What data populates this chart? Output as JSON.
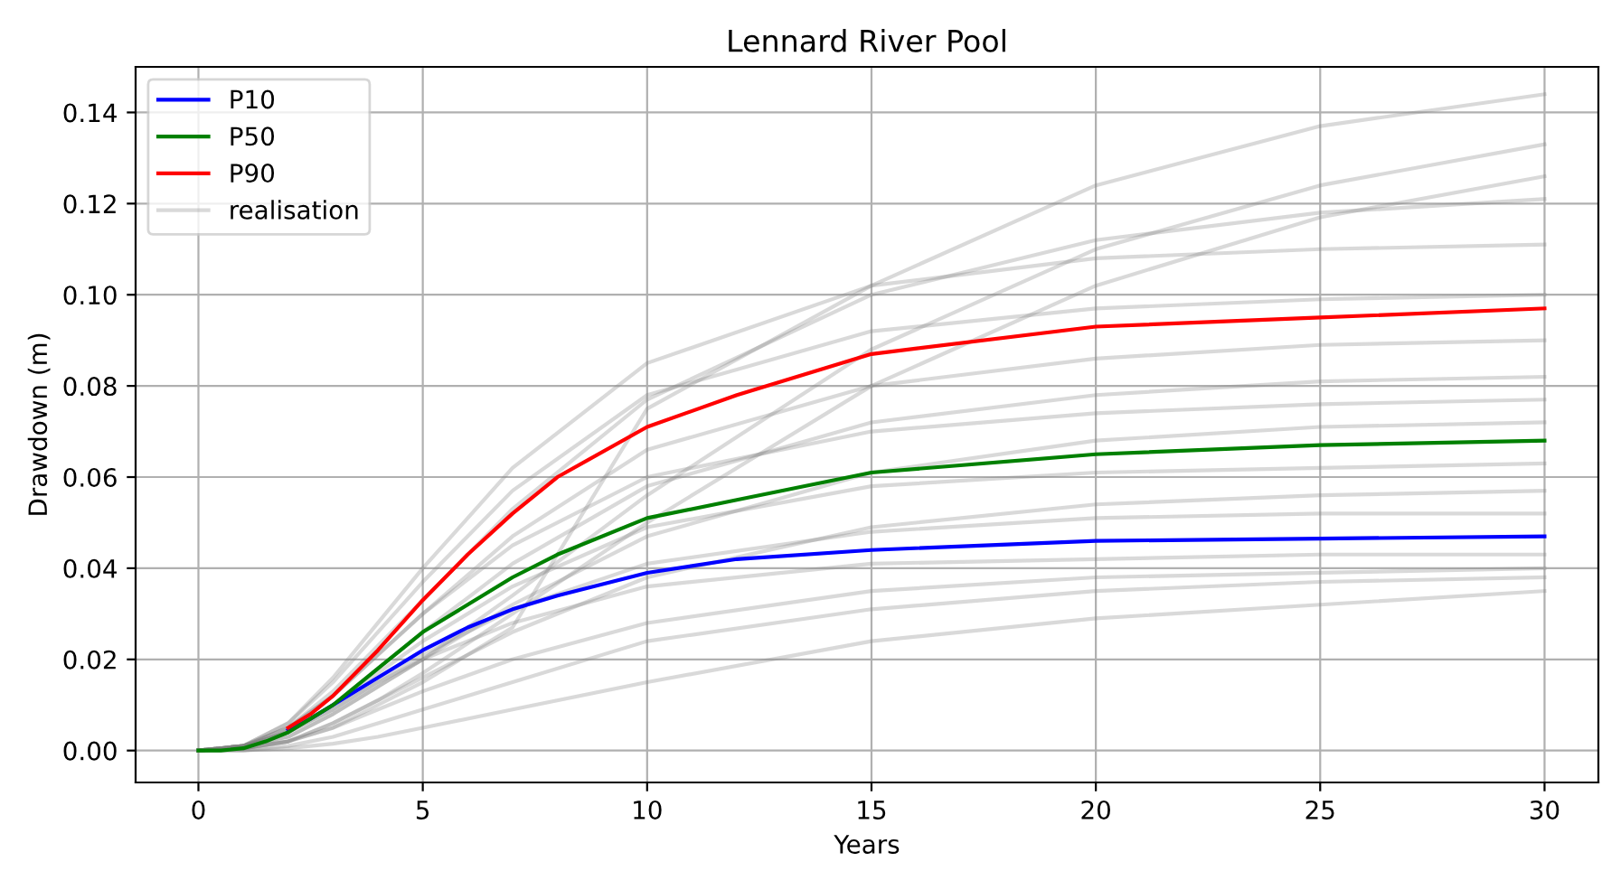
{
  "chart_data": {
    "type": "line",
    "title": "Lennard River Pool",
    "xlabel": "Years",
    "ylabel": "Drawdown (m)",
    "xlim": [
      -1.4,
      31.2
    ],
    "xticks": [
      0,
      5,
      10,
      15,
      20,
      25,
      30
    ],
    "ylim": [
      -0.007,
      0.15
    ],
    "yticks": [
      {
        "value": 0,
        "label": "0.00"
      },
      {
        "value": 0.02,
        "label": "0.02"
      },
      {
        "value": 0.04,
        "label": "0.04"
      },
      {
        "value": 0.06,
        "label": "0.06"
      },
      {
        "value": 0.08,
        "label": "0.08"
      },
      {
        "value": 0.1,
        "label": "0.10"
      },
      {
        "value": 0.12,
        "label": "0.12"
      },
      {
        "value": 0.14,
        "label": "0.14"
      }
    ],
    "grid": true,
    "legend": "top left",
    "line_style": "solid",
    "marker": "none",
    "series": [
      {
        "name": "P10",
        "color": "#0000ff",
        "x": [
          2,
          2.5,
          3,
          4,
          5,
          6,
          7,
          8,
          10,
          12,
          15,
          20,
          25,
          30
        ],
        "values": [
          0.0045,
          0.007,
          0.01,
          0.016,
          0.022,
          0.027,
          0.031,
          0.034,
          0.039,
          0.042,
          0.044,
          0.046,
          0.0465,
          0.047
        ]
      },
      {
        "name": "P50",
        "color": "#008000",
        "x": [
          0,
          0.5,
          1,
          1.5,
          2,
          2.5,
          3,
          4,
          5,
          6,
          7,
          8,
          10,
          12,
          15,
          20,
          25,
          30
        ],
        "values": [
          0,
          0,
          0.0005,
          0.002,
          0.004,
          0.007,
          0.01,
          0.018,
          0.026,
          0.032,
          0.038,
          0.043,
          0.051,
          0.055,
          0.061,
          0.065,
          0.067,
          0.068
        ]
      },
      {
        "name": "P90",
        "color": "#ff0000",
        "x": [
          2,
          2.5,
          3,
          4,
          5,
          6,
          7,
          8,
          10,
          12,
          15,
          20,
          25,
          30
        ],
        "values": [
          0.005,
          0.008,
          0.012,
          0.022,
          0.033,
          0.043,
          0.052,
          0.06,
          0.071,
          0.078,
          0.087,
          0.093,
          0.095,
          0.097
        ]
      },
      {
        "name": "realisation",
        "color": "#808080",
        "x": [
          0,
          1,
          2,
          3,
          4,
          5,
          7,
          10,
          15,
          20,
          25,
          30
        ],
        "values": [
          0,
          0.0005,
          0.002,
          0.005,
          0.01,
          0.015,
          0.027,
          0.075,
          0.102,
          0.124,
          0.137,
          0.144
        ]
      },
      {
        "color": "#808080",
        "x": [
          0,
          1,
          2,
          3,
          4,
          5,
          7,
          10,
          15,
          20,
          25,
          30
        ],
        "values": [
          0,
          0.001,
          0.006,
          0.016,
          0.028,
          0.04,
          0.062,
          0.085,
          0.102,
          0.108,
          0.11,
          0.111
        ]
      },
      {
        "color": "#808080",
        "x": [
          0,
          1,
          2,
          3,
          4,
          5,
          7,
          10,
          15,
          20,
          25,
          30
        ],
        "values": [
          0,
          0.001,
          0.005,
          0.013,
          0.023,
          0.033,
          0.053,
          0.077,
          0.1,
          0.112,
          0.118,
          0.121
        ]
      },
      {
        "color": "#808080",
        "x": [
          0,
          1,
          2,
          3,
          4,
          5,
          7,
          10,
          15,
          20,
          25,
          30
        ],
        "values": [
          0,
          0.001,
          0.006,
          0.015,
          0.026,
          0.037,
          0.057,
          0.078,
          0.092,
          0.097,
          0.099,
          0.1
        ]
      },
      {
        "color": "#808080",
        "x": [
          0,
          1,
          2,
          3,
          4,
          5,
          7,
          10,
          15,
          20,
          25,
          30
        ],
        "values": [
          0,
          0.001,
          0.005,
          0.012,
          0.021,
          0.03,
          0.047,
          0.066,
          0.08,
          0.086,
          0.089,
          0.09
        ]
      },
      {
        "color": "#808080",
        "x": [
          0,
          1,
          2,
          3,
          4,
          5,
          7,
          10,
          15,
          20,
          25,
          30
        ],
        "values": [
          0,
          0.001,
          0.004,
          0.01,
          0.018,
          0.026,
          0.041,
          0.058,
          0.072,
          0.078,
          0.081,
          0.082
        ]
      },
      {
        "color": "#808080",
        "x": [
          0,
          1,
          2,
          3,
          4,
          5,
          7,
          10,
          15,
          20,
          25,
          30
        ],
        "values": [
          0,
          0.001,
          0.005,
          0.012,
          0.021,
          0.03,
          0.045,
          0.06,
          0.07,
          0.074,
          0.076,
          0.077
        ]
      },
      {
        "color": "#808080",
        "x": [
          0,
          1,
          2,
          3,
          4,
          5,
          7,
          10,
          15,
          20,
          25,
          30
        ],
        "values": [
          0,
          0.001,
          0.003,
          0.008,
          0.014,
          0.02,
          0.032,
          0.047,
          0.061,
          0.068,
          0.071,
          0.072
        ]
      },
      {
        "color": "#808080",
        "x": [
          0,
          1,
          2,
          3,
          4,
          5,
          7,
          10,
          15,
          20,
          25,
          30
        ],
        "values": [
          0,
          0.001,
          0.004,
          0.01,
          0.017,
          0.024,
          0.036,
          0.049,
          0.058,
          0.061,
          0.062,
          0.063
        ]
      },
      {
        "color": "#808080",
        "x": [
          0,
          1,
          2,
          3,
          4,
          5,
          7,
          10,
          15,
          20,
          25,
          30
        ],
        "values": [
          0,
          0.0005,
          0.002,
          0.006,
          0.011,
          0.016,
          0.026,
          0.038,
          0.049,
          0.054,
          0.056,
          0.057
        ]
      },
      {
        "color": "#808080",
        "x": [
          0,
          1,
          2,
          3,
          4,
          5,
          7,
          10,
          15,
          20,
          25,
          30
        ],
        "values": [
          0,
          0.001,
          0.004,
          0.009,
          0.015,
          0.021,
          0.031,
          0.041,
          0.048,
          0.051,
          0.052,
          0.052
        ]
      },
      {
        "color": "#808080",
        "x": [
          0,
          1,
          2,
          3,
          4,
          5,
          7,
          10,
          15,
          20,
          25,
          30
        ],
        "values": [
          0,
          0.001,
          0.004,
          0.009,
          0.015,
          0.02,
          0.028,
          0.036,
          0.041,
          0.042,
          0.043,
          0.043
        ]
      },
      {
        "color": "#808080",
        "x": [
          0,
          1,
          2,
          3,
          4,
          5,
          7,
          10,
          15,
          20,
          25,
          30
        ],
        "values": [
          0,
          0.0005,
          0.002,
          0.005,
          0.009,
          0.013,
          0.02,
          0.028,
          0.035,
          0.038,
          0.039,
          0.04
        ]
      },
      {
        "color": "#808080",
        "x": [
          0,
          1,
          2,
          3,
          4,
          5,
          7,
          10,
          15,
          20,
          25,
          30
        ],
        "values": [
          0,
          0,
          0.0005,
          0.0015,
          0.003,
          0.005,
          0.009,
          0.015,
          0.024,
          0.029,
          0.032,
          0.035
        ]
      },
      {
        "color": "#808080",
        "x": [
          0,
          1,
          2,
          3,
          4,
          5,
          7,
          10,
          15,
          20,
          25,
          30
        ],
        "values": [
          0,
          0,
          0.001,
          0.003,
          0.006,
          0.009,
          0.015,
          0.024,
          0.031,
          0.035,
          0.037,
          0.038
        ]
      },
      {
        "color": "#808080",
        "x": [
          0,
          1,
          2,
          3,
          4,
          5,
          7,
          10,
          15,
          20,
          25,
          30
        ],
        "values": [
          0,
          0.001,
          0.003,
          0.008,
          0.014,
          0.02,
          0.034,
          0.056,
          0.088,
          0.11,
          0.124,
          0.133
        ]
      },
      {
        "color": "#808080",
        "x": [
          0,
          1,
          2,
          3,
          4,
          5,
          7,
          10,
          15,
          20,
          25,
          30
        ],
        "values": [
          0,
          0.0005,
          0.002,
          0.006,
          0.011,
          0.017,
          0.03,
          0.05,
          0.08,
          0.102,
          0.117,
          0.126
        ]
      }
    ]
  }
}
